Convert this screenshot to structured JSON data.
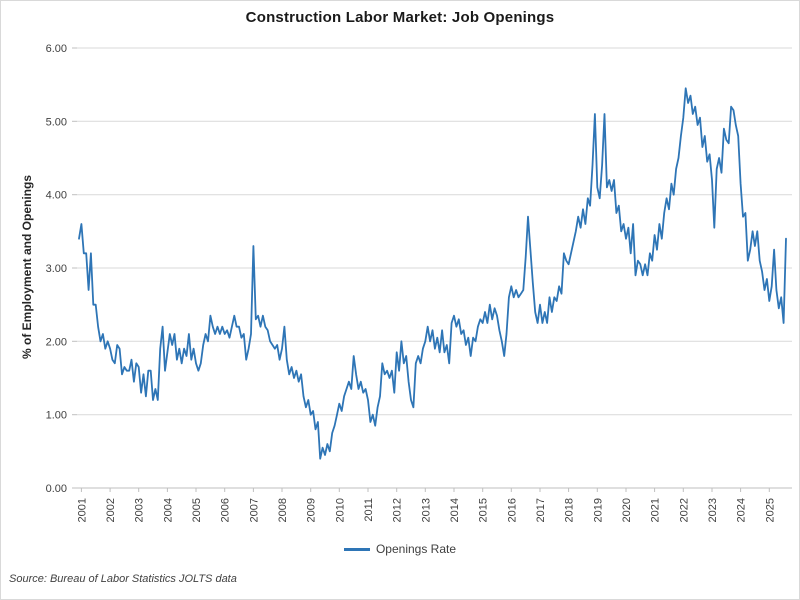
{
  "chart_data": {
    "type": "line",
    "title": "Construction Labor Market: Job Openings",
    "ylabel": "% of Employment and Openings",
    "xlabel": "",
    "ylim": [
      0,
      6
    ],
    "y_ticks": [
      "0.00",
      "1.00",
      "2.00",
      "3.00",
      "4.00",
      "5.00",
      "6.00"
    ],
    "x_tick_years": [
      "2001",
      "2002",
      "2003",
      "2004",
      "2005",
      "2006",
      "2007",
      "2008",
      "2009",
      "2010",
      "2011",
      "2012",
      "2013",
      "2014",
      "2015",
      "2016",
      "2017",
      "2018",
      "2019",
      "2020",
      "2021",
      "2022",
      "2023",
      "2024",
      "2025"
    ],
    "frequency": "monthly",
    "first_point": "2000-12",
    "last_point": "2025-08",
    "grid": "horizontal",
    "legend_position": "bottom",
    "series": [
      {
        "name": "Openings Rate",
        "color": "#2E75B6",
        "values": [
          3.4,
          3.6,
          3.2,
          3.2,
          2.7,
          3.2,
          2.5,
          2.5,
          2.2,
          2.0,
          2.1,
          1.9,
          2.0,
          1.9,
          1.75,
          1.7,
          1.95,
          1.9,
          1.55,
          1.65,
          1.6,
          1.6,
          1.75,
          1.45,
          1.7,
          1.65,
          1.3,
          1.55,
          1.25,
          1.6,
          1.6,
          1.2,
          1.35,
          1.2,
          1.9,
          2.2,
          1.6,
          1.85,
          2.1,
          1.95,
          2.1,
          1.75,
          1.9,
          1.7,
          1.9,
          1.8,
          2.1,
          1.75,
          1.9,
          1.7,
          1.6,
          1.7,
          1.95,
          2.1,
          2.0,
          2.35,
          2.2,
          2.1,
          2.2,
          2.1,
          2.2,
          2.1,
          2.15,
          2.05,
          2.2,
          2.35,
          2.2,
          2.2,
          2.05,
          2.1,
          1.75,
          1.9,
          2.1,
          3.3,
          2.3,
          2.35,
          2.2,
          2.35,
          2.2,
          2.15,
          2.0,
          1.95,
          1.9,
          1.95,
          1.75,
          1.9,
          2.2,
          1.75,
          1.55,
          1.65,
          1.5,
          1.6,
          1.45,
          1.55,
          1.25,
          1.1,
          1.2,
          1.0,
          1.05,
          0.8,
          0.9,
          0.4,
          0.55,
          0.45,
          0.6,
          0.5,
          0.75,
          0.85,
          1.0,
          1.15,
          1.05,
          1.25,
          1.35,
          1.45,
          1.35,
          1.8,
          1.55,
          1.35,
          1.45,
          1.3,
          1.35,
          1.2,
          0.9,
          1.0,
          0.85,
          1.1,
          1.25,
          1.7,
          1.55,
          1.6,
          1.5,
          1.6,
          1.3,
          1.85,
          1.6,
          2.0,
          1.7,
          1.8,
          1.45,
          1.2,
          1.1,
          1.7,
          1.8,
          1.7,
          1.9,
          2.0,
          2.2,
          2.0,
          2.15,
          1.9,
          2.05,
          1.85,
          2.15,
          1.85,
          1.95,
          1.7,
          2.25,
          2.35,
          2.2,
          2.3,
          2.1,
          2.15,
          1.95,
          2.05,
          1.8,
          2.05,
          2.0,
          2.2,
          2.3,
          2.25,
          2.4,
          2.25,
          2.5,
          2.3,
          2.45,
          2.35,
          2.15,
          2.0,
          1.8,
          2.1,
          2.6,
          2.75,
          2.6,
          2.7,
          2.6,
          2.65,
          2.7,
          3.15,
          3.7,
          3.25,
          2.8,
          2.4,
          2.25,
          2.5,
          2.25,
          2.4,
          2.25,
          2.6,
          2.4,
          2.6,
          2.55,
          2.75,
          2.65,
          3.2,
          3.1,
          3.05,
          3.2,
          3.35,
          3.5,
          3.7,
          3.55,
          3.8,
          3.6,
          3.95,
          3.85,
          4.4,
          5.1,
          4.1,
          3.95,
          4.4,
          5.1,
          4.1,
          4.2,
          4.05,
          4.2,
          3.75,
          3.85,
          3.5,
          3.6,
          3.4,
          3.55,
          3.2,
          3.6,
          2.9,
          3.1,
          3.05,
          2.9,
          3.05,
          2.9,
          3.2,
          3.1,
          3.45,
          3.25,
          3.6,
          3.4,
          3.75,
          3.95,
          3.8,
          4.15,
          4.0,
          4.35,
          4.5,
          4.8,
          5.05,
          5.45,
          5.25,
          5.35,
          5.1,
          5.2,
          4.95,
          5.05,
          4.65,
          4.8,
          4.45,
          4.55,
          4.2,
          3.55,
          4.35,
          4.5,
          4.3,
          4.9,
          4.75,
          4.7,
          5.2,
          5.15,
          4.95,
          4.8,
          4.15,
          3.7,
          3.75,
          3.1,
          3.25,
          3.5,
          3.3,
          3.5,
          3.1,
          2.95,
          2.7,
          2.85,
          2.55,
          2.75,
          3.25,
          2.7,
          2.45,
          2.6,
          2.25,
          3.4
        ]
      }
    ]
  },
  "legend": {
    "label": "Openings Rate"
  },
  "source_note": "Source: Bureau of Labor Statistics JOLTS data",
  "colors": {
    "line": "#2E75B6",
    "gridline": "#D9D9D9",
    "axis": "#BFBFBF",
    "tick_text": "#404040",
    "title_text": "#1A1A1A"
  }
}
